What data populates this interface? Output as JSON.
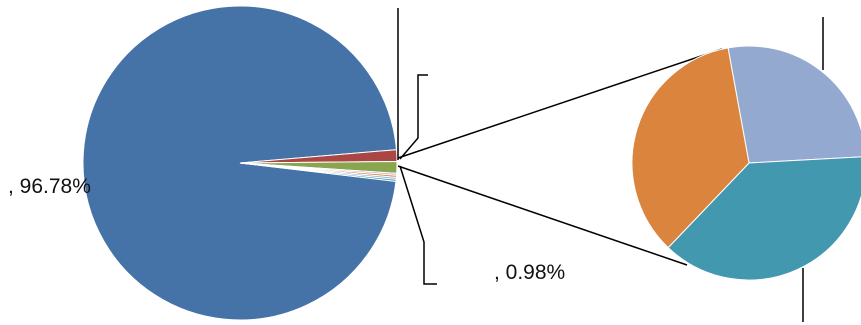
{
  "chart_data": {
    "type": "pie",
    "subtype": "pie-of-pie",
    "main_pie": {
      "slices": [
        {
          "value": 96.78,
          "label": ", 96.78%",
          "color": "#4572A7"
        },
        {
          "value": 1.2,
          "label": "",
          "color": "#AA4643"
        },
        {
          "value": 1.2,
          "label": "",
          "color": "#89A54E"
        },
        {
          "value": 0.2,
          "label": "",
          "color": "#C6A5D4"
        },
        {
          "value": 0.22,
          "label": "",
          "color": "#DB843D"
        },
        {
          "value": 0.2,
          "label": "",
          "color": "#93A9CF"
        },
        {
          "value": 0.2,
          "label": "",
          "color": "#4198AF"
        }
      ]
    },
    "secondary_pie": {
      "slices": [
        {
          "value": 27,
          "color": "#93A9CF"
        },
        {
          "value": 38,
          "color": "#4198AF"
        },
        {
          "value": 35,
          "color": "#DB843D"
        }
      ]
    },
    "callout_labels": [
      {
        "text": ", 0.98%"
      }
    ],
    "legend": "none"
  }
}
